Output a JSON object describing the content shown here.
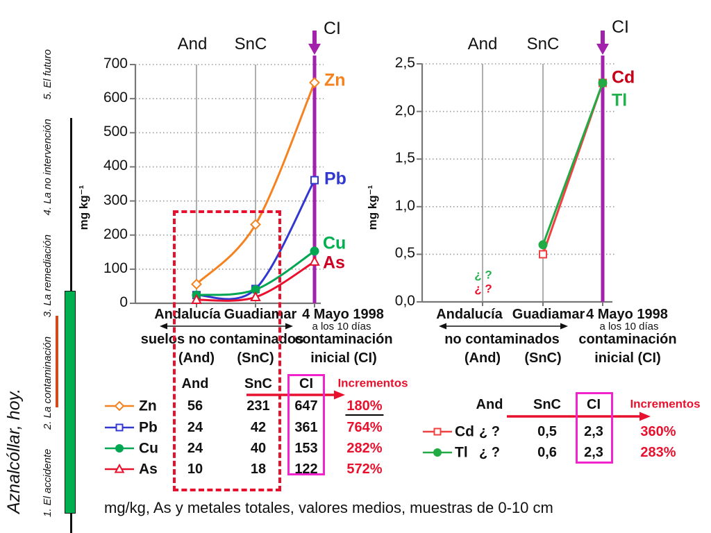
{
  "sidebar": {
    "title": "Aznalcóllar, hoy.",
    "nav_items": [
      "1. El accidente",
      "2. La contaminación",
      "3. La remediación",
      "4. La no intervención",
      "5. El futuro"
    ]
  },
  "caption": "mg/kg,  As y metales totales, valores medios, muestras de 0-10 cm",
  "colors": {
    "ci_purple": "#A322AC",
    "magenta_box": "#F222CC",
    "accent_red": "#E8112D",
    "grid_gray": "#999999",
    "axis_gray": "#777777",
    "green_bar": "#00B050",
    "sidebar_marker": "#D2491E"
  },
  "chart_data": [
    {
      "type": "line",
      "panel": "left",
      "ylabel": "mg kg⁻¹",
      "ylim": [
        0,
        700
      ],
      "yticks": [
        "700",
        "600",
        "500",
        "400",
        "300",
        "200",
        "100",
        "0"
      ],
      "x_headers": [
        "And",
        "SnC"
      ],
      "ci_label": "CI",
      "categories": [
        "Andalucía",
        "Guadiamar",
        "4 Mayo 1998"
      ],
      "x_sub": {
        "group_label": "suelos  no contaminados",
        "and_code": "(And)",
        "snc_code": "(SnC)",
        "date_note": "a los 10 días",
        "ci_line1": "contaminación",
        "ci_line2": "inicial  (CI)"
      },
      "grid": "dotted-horizontal, solid-vertical",
      "legend_position": "table-below",
      "series": [
        {
          "name": "Zn",
          "color": "#F5821F",
          "label_color": "#F5821F",
          "marker": "diamond",
          "filled": false,
          "values": [
            56,
            231,
            647
          ]
        },
        {
          "name": "Pb",
          "color": "#3038D0",
          "label_color": "#3038D0",
          "marker": "square",
          "filled": false,
          "values": [
            24,
            42,
            361
          ]
        },
        {
          "name": "Cu",
          "color": "#00A651",
          "label_color": "#00B050",
          "marker": "circle",
          "filled": true,
          "values": [
            24,
            40,
            153
          ]
        },
        {
          "name": "As",
          "color": "#E8112D",
          "label_color": "#CC0022",
          "marker": "triangle",
          "filled": false,
          "values": [
            10,
            18,
            122
          ]
        }
      ]
    },
    {
      "type": "line",
      "panel": "right",
      "ylabel": "mg kg⁻¹",
      "ylim": [
        0,
        2.5
      ],
      "yticks": [
        "2,5",
        "2,0",
        "1,5",
        "1,0",
        "0,5",
        "0,0"
      ],
      "x_headers": [
        "And",
        "SnC"
      ],
      "ci_label": "CI",
      "categories": [
        "Andalucía",
        "Guadiamar",
        "4 Mayo 1998"
      ],
      "x_sub": {
        "group_label": "no contaminados",
        "and_code": "(And)",
        "snc_code": "(SnC)",
        "date_note": "a los 10 días",
        "ci_line1": "contaminación",
        "ci_line2": "inicial  (CI)"
      },
      "grid": "dotted-horizontal, solid-vertical",
      "legend_position": "table-below",
      "series": [
        {
          "name": "Cd",
          "color": "#F04040",
          "label_color": "#C50018",
          "marker": "square",
          "filled": false,
          "values": [
            null,
            0.5,
            2.3
          ]
        },
        {
          "name": "Tl",
          "color": "#22AA44",
          "label_color": "#22B14C",
          "marker": "circle",
          "filled": true,
          "values": [
            null,
            0.6,
            2.3
          ]
        }
      ],
      "unknown_marks": [
        {
          "series": "Tl",
          "text": "¿ ?",
          "color": "#22B14C"
        },
        {
          "series": "Cd",
          "text": "¿ ?",
          "color": "#E8112D"
        }
      ]
    }
  ],
  "tables": {
    "left": {
      "headers": [
        "And",
        "SnC",
        "CI",
        "Incrementos"
      ],
      "rows": [
        {
          "label": "Zn",
          "values": [
            "56",
            "231",
            "647"
          ],
          "incremento": "180%",
          "underline": true
        },
        {
          "label": "Pb",
          "values": [
            "24",
            "42",
            "361"
          ],
          "incremento": "764%",
          "underline": false
        },
        {
          "label": "Cu",
          "values": [
            "24",
            "40",
            "153"
          ],
          "incremento": "282%",
          "underline": false
        },
        {
          "label": "As",
          "values": [
            "10",
            "18",
            "122"
          ],
          "incremento": "572%",
          "underline": false
        }
      ]
    },
    "right": {
      "headers": [
        "And",
        "SnC",
        "CI",
        "Incrementos"
      ],
      "rows": [
        {
          "label": "Cd",
          "values": [
            "¿ ?",
            "0,5",
            "2,3"
          ],
          "incremento": "360%",
          "underline": false
        },
        {
          "label": "Tl",
          "values": [
            "¿ ?",
            "0,6",
            "2,3"
          ],
          "incremento": "283%",
          "underline": false
        }
      ]
    }
  }
}
